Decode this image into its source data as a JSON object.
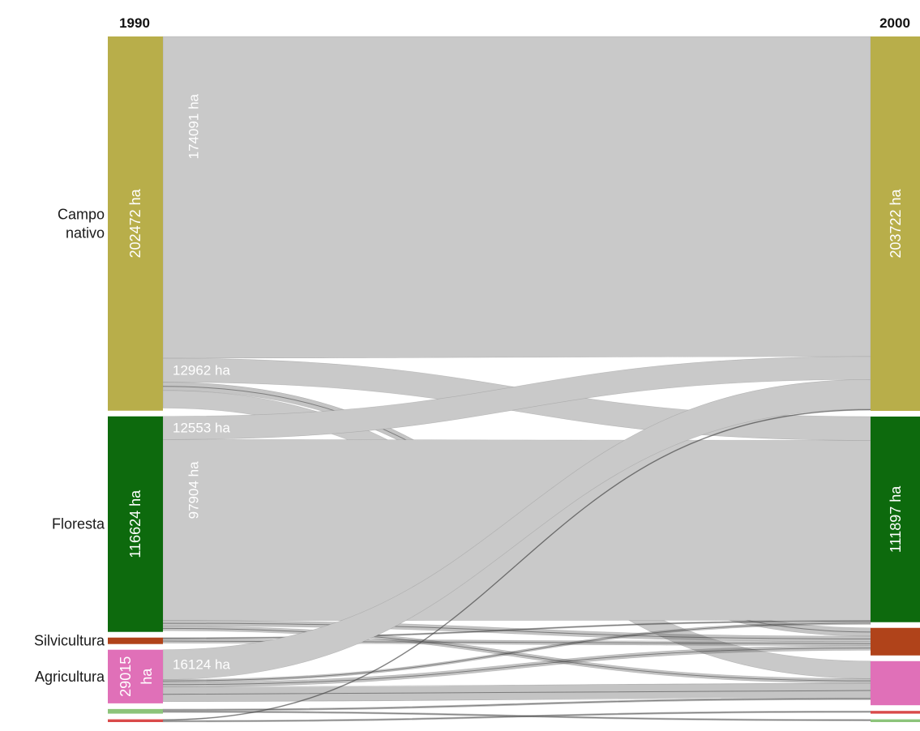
{
  "chart_data": {
    "type": "sankey",
    "years": {
      "left": "1990",
      "right": "2000"
    },
    "colors": {
      "Campo nativo": "#b8ae4a",
      "Floresta": "#0d6a0d",
      "Silvicultura": "#b0431a",
      "Agricultura": "#e070b8",
      "Other green": "#8cc47a",
      "Other red": "#d94a4a",
      "flow": "#c9c9c9",
      "flow_dark": "#555555"
    },
    "categories_left": [
      {
        "name": "Campo nativo",
        "label_lines": [
          "Campo",
          "nativo"
        ],
        "value": 202472,
        "value_label": "202472 ha"
      },
      {
        "name": "Floresta",
        "label_lines": [
          "Floresta"
        ],
        "value": 116624,
        "value_label": "116624 ha"
      },
      {
        "name": "Silvicultura",
        "label_lines": [
          "Silvicultura"
        ],
        "value": 3500,
        "value_label": ""
      },
      {
        "name": "Agricultura",
        "label_lines": [
          "Agricultura"
        ],
        "value": 29015,
        "value_label_lines": [
          "29015",
          "ha"
        ]
      },
      {
        "name": "Other green",
        "label_lines": [],
        "value": 2500,
        "value_label": ""
      },
      {
        "name": "Other red",
        "label_lines": [],
        "value": 1500,
        "value_label": ""
      }
    ],
    "categories_right": [
      {
        "name": "Campo nativo",
        "value": 203722,
        "value_label": "203722 ha"
      },
      {
        "name": "Floresta",
        "value": 111897,
        "value_label": "111897 ha"
      },
      {
        "name": "Silvicultura",
        "value": 15000,
        "value_label": ""
      },
      {
        "name": "Agricultura",
        "value": 24000,
        "value_label": ""
      },
      {
        "name": "Other red",
        "value": 1500,
        "value_label": ""
      },
      {
        "name": "Other green",
        "value": 1500,
        "value_label": ""
      }
    ],
    "flows": [
      {
        "source": "Campo nativo",
        "target": "Campo nativo",
        "value": 174091,
        "label": "174091 ha",
        "label_rotated": true
      },
      {
        "source": "Campo nativo",
        "target": "Floresta",
        "value": 12962,
        "label": "12962 ha"
      },
      {
        "source": "Campo nativo",
        "target": "Silvicultura",
        "value": 4500
      },
      {
        "source": "Campo nativo",
        "target": "Agricultura",
        "value": 9500
      },
      {
        "source": "Floresta",
        "target": "Campo nativo",
        "value": 12553,
        "label": "12553 ha"
      },
      {
        "source": "Floresta",
        "target": "Floresta",
        "value": 97904,
        "label": "97904 ha",
        "label_rotated": true
      },
      {
        "source": "Floresta",
        "target": "Silvicultura",
        "value": 3000
      },
      {
        "source": "Floresta",
        "target": "Agricultura",
        "value": 2500
      },
      {
        "source": "Silvicultura",
        "target": "Silvicultura",
        "value": 2200
      },
      {
        "source": "Silvicultura",
        "target": "Floresta",
        "value": 800
      },
      {
        "source": "Agricultura",
        "target": "Campo nativo",
        "value": 16124,
        "label": "16124 ha"
      },
      {
        "source": "Agricultura",
        "target": "Agricultura",
        "value": 8000
      },
      {
        "source": "Agricultura",
        "target": "Silvicultura",
        "value": 2500
      },
      {
        "source": "Agricultura",
        "target": "Floresta",
        "value": 1500
      },
      {
        "source": "Other green",
        "target": "Other green",
        "value": 900
      },
      {
        "source": "Other green",
        "target": "Agricultura",
        "value": 1000
      },
      {
        "source": "Other red",
        "target": "Other red",
        "value": 900
      },
      {
        "source": "Other red",
        "target": "Campo nativo",
        "value": 600
      }
    ]
  }
}
